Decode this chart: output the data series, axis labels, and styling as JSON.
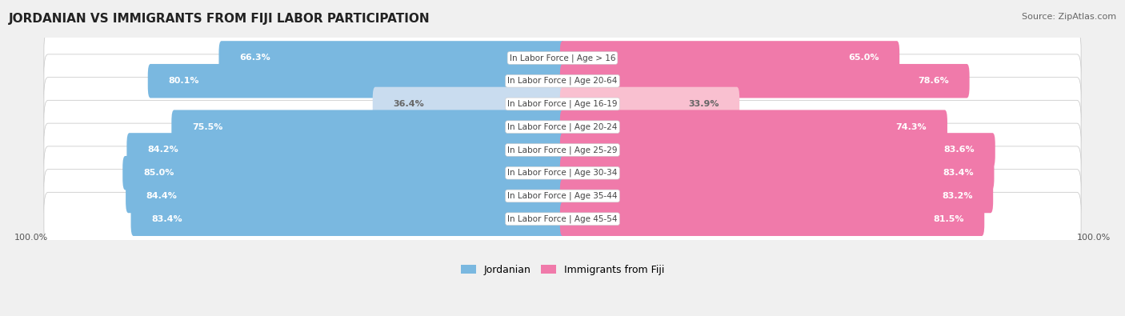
{
  "title": "JORDANIAN VS IMMIGRANTS FROM FIJI LABOR PARTICIPATION",
  "source": "Source: ZipAtlas.com",
  "categories": [
    "In Labor Force | Age > 16",
    "In Labor Force | Age 20-64",
    "In Labor Force | Age 16-19",
    "In Labor Force | Age 20-24",
    "In Labor Force | Age 25-29",
    "In Labor Force | Age 30-34",
    "In Labor Force | Age 35-44",
    "In Labor Force | Age 45-54"
  ],
  "jordanian": [
    66.3,
    80.1,
    36.4,
    75.5,
    84.2,
    85.0,
    84.4,
    83.4
  ],
  "fiji": [
    65.0,
    78.6,
    33.9,
    74.3,
    83.6,
    83.4,
    83.2,
    81.5
  ],
  "jordanian_color_full": "#7ab8e0",
  "jordanian_color_light": "#c9dcef",
  "fiji_color_full": "#f07aaa",
  "fiji_color_light": "#f9c0d0",
  "max_val": 100.0,
  "background_color": "#f0f0f0",
  "row_bg_color": "#ffffff",
  "row_border_color": "#cccccc",
  "center_label_color": "#444444",
  "legend_jordanian": "Jordanian",
  "legend_fiji": "Immigrants from Fiji",
  "title_fontsize": 11,
  "source_fontsize": 8,
  "bar_label_fontsize": 8,
  "cat_label_fontsize": 7.5
}
